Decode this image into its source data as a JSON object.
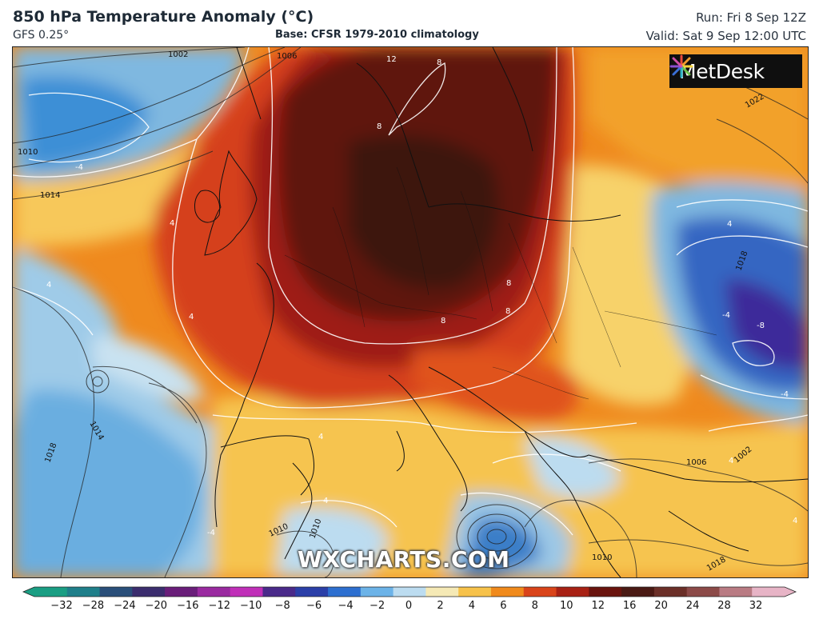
{
  "header": {
    "title": "850 hPa Temperature Anomaly (°C)",
    "model": "GFS 0.25°",
    "base": "Base: CFSR 1979-2010 climatology",
    "run": "Run: Fri 8 Sep 12Z",
    "valid": "Valid: Sat 9 Sep 12:00 UTC"
  },
  "logo": {
    "text": "MetDesk",
    "icon": "metdesk-burst-icon"
  },
  "watermark": "WXCHARTS.COM",
  "isobars": [
    {
      "label": "1002"
    },
    {
      "label": "1006"
    },
    {
      "label": "1010"
    },
    {
      "label": "1014"
    },
    {
      "label": "1018"
    },
    {
      "label": "1022"
    },
    {
      "label": "1014"
    },
    {
      "label": "1018"
    },
    {
      "label": "1006"
    },
    {
      "label": "1002"
    },
    {
      "label": "1010"
    },
    {
      "label": "1010"
    },
    {
      "label": "1010"
    },
    {
      "label": "1018"
    }
  ],
  "anomaly_labels": [
    {
      "label": "12"
    },
    {
      "label": "8"
    },
    {
      "label": "8"
    },
    {
      "label": "-4"
    },
    {
      "label": "4"
    },
    {
      "label": "4"
    },
    {
      "label": "4"
    },
    {
      "label": "8"
    },
    {
      "label": "8"
    },
    {
      "label": "8"
    },
    {
      "label": "4"
    },
    {
      "label": "-4"
    },
    {
      "label": "-8"
    },
    {
      "label": "-4"
    },
    {
      "label": "4"
    },
    {
      "label": "4"
    },
    {
      "label": "4"
    },
    {
      "label": "-4"
    },
    {
      "label": "4"
    }
  ],
  "colorbar": {
    "ticks": [
      "−32",
      "−28",
      "−24",
      "−20",
      "−16",
      "−12",
      "−10",
      "−8",
      "−6",
      "−4",
      "−2",
      "0",
      "2",
      "4",
      "6",
      "8",
      "10",
      "12",
      "16",
      "20",
      "24",
      "28",
      "32"
    ],
    "colors": [
      "#1a9e83",
      "#1f7f8a",
      "#2a4f7a",
      "#3b2d6e",
      "#6a1e7a",
      "#9a2aa0",
      "#c02fb8",
      "#4a2a8a",
      "#2b3fa8",
      "#2d6fd0",
      "#6cb3e8",
      "#bcdcf0",
      "#f5e9b5",
      "#f7c24a",
      "#f08a1c",
      "#d9441a",
      "#a82114",
      "#6a140e",
      "#4a1a14",
      "#6b2f28",
      "#8c4a48",
      "#b97b83",
      "#e7b4c6"
    ]
  }
}
